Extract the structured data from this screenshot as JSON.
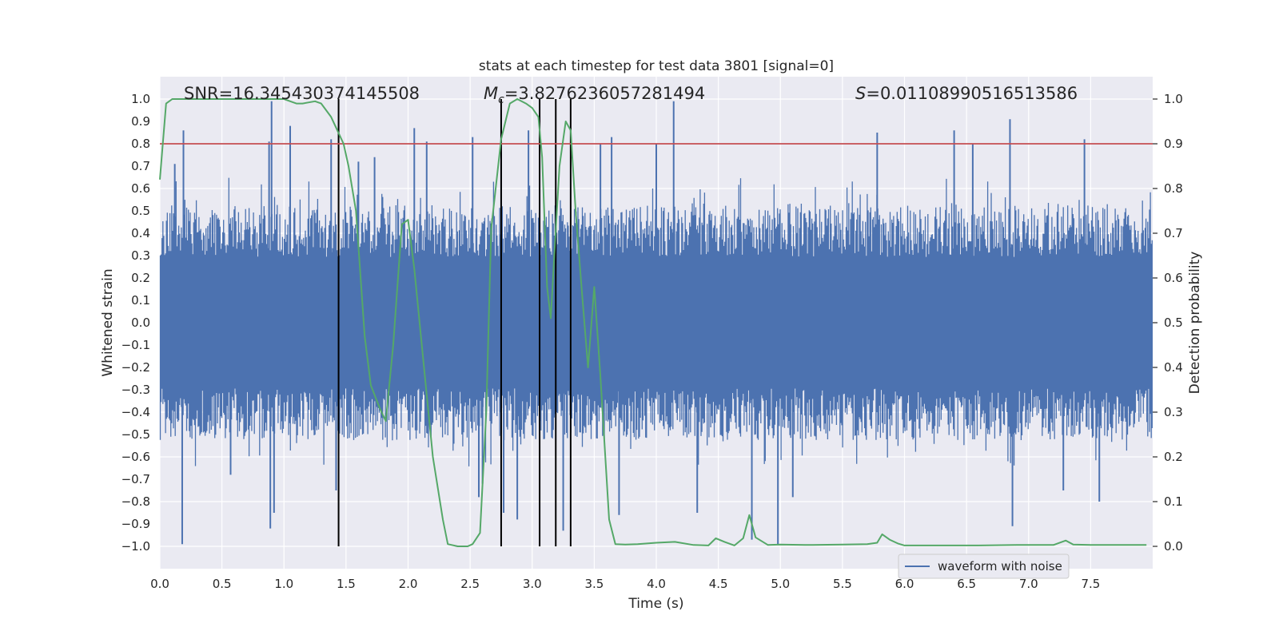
{
  "chart_data": {
    "type": "line",
    "title": "stats at each timestep for test data 3801 [signal=0]",
    "xlabel": "Time (s)",
    "ylabel_left": "Whitened strain",
    "ylabel_right": "Detection probability",
    "xlim": [
      0.0,
      8.0
    ],
    "ylim_left": [
      -1.1,
      1.1
    ],
    "ylim_right": [
      -0.05,
      1.05
    ],
    "x_ticks": [
      "0.0",
      "0.5",
      "1.0",
      "1.5",
      "2.0",
      "2.5",
      "3.0",
      "3.5",
      "4.0",
      "4.5",
      "5.0",
      "5.5",
      "6.0",
      "6.5",
      "7.0",
      "7.5"
    ],
    "y_left_ticks": [
      "1.0",
      "0.9",
      "0.8",
      "0.7",
      "0.6",
      "0.5",
      "0.4",
      "0.3",
      "0.2",
      "0.1",
      "0.0",
      "−0.1",
      "−0.2",
      "−0.3",
      "−0.4",
      "−0.5",
      "−0.6",
      "−0.7",
      "−0.8",
      "−0.9",
      "−1.0"
    ],
    "y_right_ticks": [
      "1.0",
      "0.9",
      "0.8",
      "0.7",
      "0.6",
      "0.5",
      "0.4",
      "0.3",
      "0.2",
      "0.1",
      "0.0"
    ],
    "annotations": {
      "snr": "SNR=16.345430374145508",
      "mc_symbol": "M",
      "mc_sub": "c",
      "mc_value": "=3.8276236057281494",
      "s_symbol": "S",
      "s_value": "=0.01108990516513586"
    },
    "legend": [
      {
        "name": "waveform with noise",
        "color": "#4c72b0"
      }
    ],
    "threshold": {
      "value": 0.9,
      "axis": "right",
      "color": "#c44e52"
    },
    "vertical_lines": [
      1.44,
      2.75,
      3.06,
      3.19,
      3.31
    ],
    "vertical_line_range": [
      -1.0,
      1.0
    ],
    "series": [
      {
        "name": "waveform with noise",
        "axis": "left",
        "color": "#4c72b0",
        "envelope_typical": 0.42,
        "spikes": [
          [
            0.12,
            0.71
          ],
          [
            0.19,
            0.86
          ],
          [
            0.18,
            -0.99
          ],
          [
            0.57,
            -0.68
          ],
          [
            0.88,
            0.81
          ],
          [
            0.89,
            -0.92
          ],
          [
            0.9,
            0.99
          ],
          [
            0.92,
            -0.85
          ],
          [
            1.05,
            0.88
          ],
          [
            1.38,
            0.82
          ],
          [
            1.42,
            -0.75
          ],
          [
            1.6,
            0.72
          ],
          [
            1.73,
            0.74
          ],
          [
            2.05,
            0.87
          ],
          [
            2.15,
            0.81
          ],
          [
            2.52,
            0.83
          ],
          [
            2.57,
            -0.78
          ],
          [
            2.6,
            -0.72
          ],
          [
            2.75,
            0.95
          ],
          [
            2.77,
            -0.85
          ],
          [
            2.88,
            -0.88
          ],
          [
            2.97,
            0.86
          ],
          [
            3.25,
            -0.93
          ],
          [
            3.55,
            0.8
          ],
          [
            3.64,
            0.83
          ],
          [
            3.7,
            -0.86
          ],
          [
            4.0,
            0.8
          ],
          [
            4.14,
            0.99
          ],
          [
            4.33,
            -0.85
          ],
          [
            4.77,
            -0.97
          ],
          [
            4.98,
            -0.99
          ],
          [
            5.1,
            -0.78
          ],
          [
            5.78,
            0.85
          ],
          [
            6.4,
            0.86
          ],
          [
            6.55,
            0.8
          ],
          [
            6.85,
            0.91
          ],
          [
            6.87,
            -0.91
          ],
          [
            7.28,
            -0.75
          ],
          [
            7.45,
            0.82
          ],
          [
            7.57,
            -0.8
          ]
        ]
      },
      {
        "name": "detection probability",
        "axis": "right",
        "color": "#55a868",
        "points": [
          [
            0.0,
            0.82
          ],
          [
            0.05,
            0.99
          ],
          [
            0.1,
            1.0
          ],
          [
            0.4,
            1.0
          ],
          [
            0.8,
            1.0
          ],
          [
            0.9,
            1.0
          ],
          [
            1.0,
            1.0
          ],
          [
            1.05,
            0.995
          ],
          [
            1.1,
            0.99
          ],
          [
            1.15,
            0.99
          ],
          [
            1.25,
            0.995
          ],
          [
            1.3,
            0.99
          ],
          [
            1.38,
            0.96
          ],
          [
            1.43,
            0.93
          ],
          [
            1.48,
            0.9
          ],
          [
            1.52,
            0.85
          ],
          [
            1.58,
            0.75
          ],
          [
            1.65,
            0.47
          ],
          [
            1.7,
            0.36
          ],
          [
            1.77,
            0.31
          ],
          [
            1.82,
            0.28
          ],
          [
            1.88,
            0.45
          ],
          [
            1.95,
            0.72
          ],
          [
            2.0,
            0.73
          ],
          [
            2.05,
            0.62
          ],
          [
            2.1,
            0.48
          ],
          [
            2.2,
            0.2
          ],
          [
            2.28,
            0.06
          ],
          [
            2.32,
            0.005
          ],
          [
            2.4,
            0.0
          ],
          [
            2.48,
            0.0
          ],
          [
            2.52,
            0.005
          ],
          [
            2.58,
            0.03
          ],
          [
            2.63,
            0.3
          ],
          [
            2.67,
            0.71
          ],
          [
            2.75,
            0.91
          ],
          [
            2.82,
            0.99
          ],
          [
            2.88,
            1.0
          ],
          [
            2.95,
            0.99
          ],
          [
            3.0,
            0.98
          ],
          [
            3.05,
            0.96
          ],
          [
            3.08,
            0.87
          ],
          [
            3.12,
            0.58
          ],
          [
            3.15,
            0.51
          ],
          [
            3.18,
            0.66
          ],
          [
            3.22,
            0.85
          ],
          [
            3.27,
            0.95
          ],
          [
            3.31,
            0.93
          ],
          [
            3.35,
            0.75
          ],
          [
            3.4,
            0.57
          ],
          [
            3.45,
            0.4
          ],
          [
            3.5,
            0.58
          ],
          [
            3.55,
            0.38
          ],
          [
            3.62,
            0.06
          ],
          [
            3.67,
            0.005
          ],
          [
            3.75,
            0.004
          ],
          [
            3.85,
            0.005
          ],
          [
            4.0,
            0.008
          ],
          [
            4.15,
            0.01
          ],
          [
            4.3,
            0.003
          ],
          [
            4.42,
            0.002
          ],
          [
            4.48,
            0.018
          ],
          [
            4.55,
            0.01
          ],
          [
            4.63,
            0.002
          ],
          [
            4.7,
            0.018
          ],
          [
            4.75,
            0.07
          ],
          [
            4.8,
            0.02
          ],
          [
            4.9,
            0.003
          ],
          [
            5.0,
            0.004
          ],
          [
            5.2,
            0.003
          ],
          [
            5.5,
            0.004
          ],
          [
            5.7,
            0.005
          ],
          [
            5.78,
            0.008
          ],
          [
            5.82,
            0.027
          ],
          [
            5.88,
            0.015
          ],
          [
            5.95,
            0.006
          ],
          [
            6.0,
            0.002
          ],
          [
            6.3,
            0.002
          ],
          [
            6.6,
            0.002
          ],
          [
            6.9,
            0.003
          ],
          [
            7.2,
            0.003
          ],
          [
            7.3,
            0.013
          ],
          [
            7.36,
            0.004
          ],
          [
            7.5,
            0.003
          ],
          [
            7.95,
            0.003
          ]
        ]
      }
    ]
  }
}
